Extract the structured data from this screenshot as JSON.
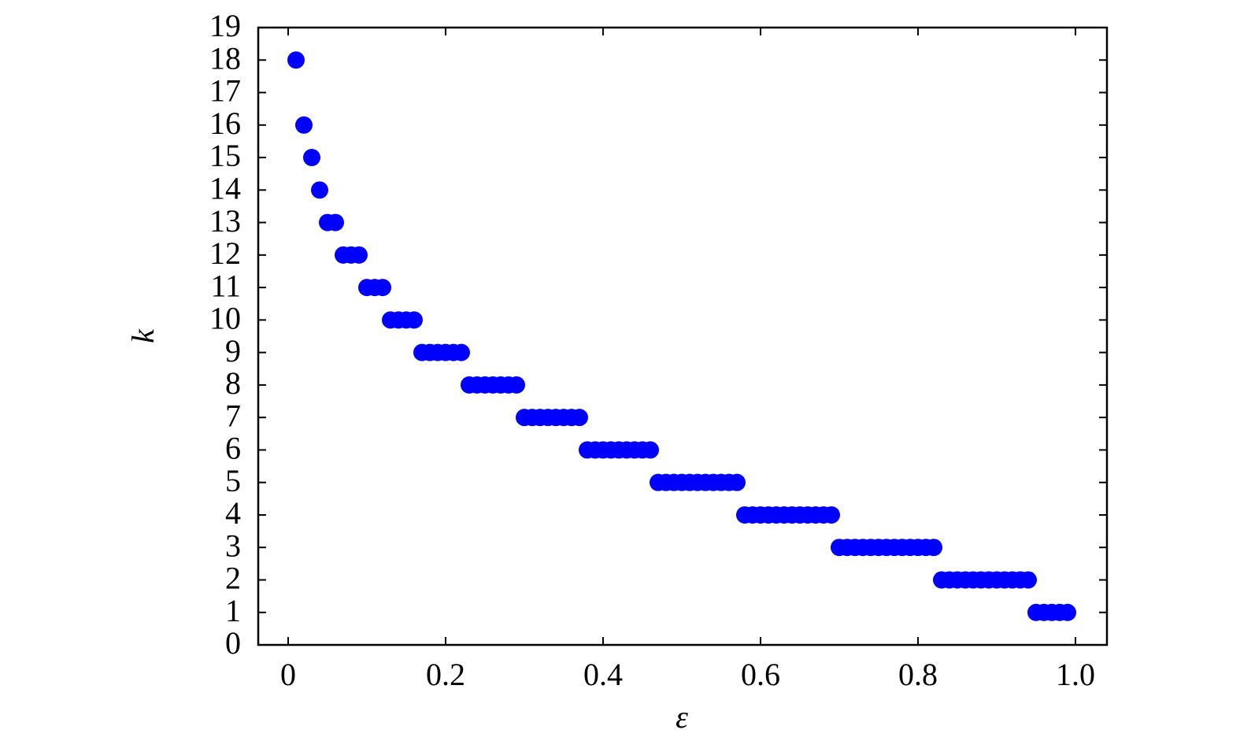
{
  "chart_data": {
    "type": "scatter",
    "x_label": "ε",
    "y_label": "k",
    "x": [
      0.01,
      0.02,
      0.03,
      0.04,
      0.05,
      0.06,
      0.07,
      0.08,
      0.09,
      0.1,
      0.11,
      0.12,
      0.13,
      0.14,
      0.15,
      0.16,
      0.17,
      0.18,
      0.19,
      0.2,
      0.21,
      0.22,
      0.23,
      0.24,
      0.25,
      0.26,
      0.27,
      0.28,
      0.29,
      0.3,
      0.31,
      0.32,
      0.33,
      0.34,
      0.35,
      0.36,
      0.37,
      0.38,
      0.39,
      0.4,
      0.41,
      0.42,
      0.43,
      0.44,
      0.45,
      0.46,
      0.47,
      0.48,
      0.49,
      0.5,
      0.51,
      0.52,
      0.53,
      0.54,
      0.55,
      0.56,
      0.57,
      0.58,
      0.59,
      0.6,
      0.61,
      0.62,
      0.63,
      0.64,
      0.65,
      0.66,
      0.67,
      0.68,
      0.69,
      0.7,
      0.71,
      0.72,
      0.73,
      0.74,
      0.75,
      0.76,
      0.77,
      0.78,
      0.79,
      0.8,
      0.81,
      0.82,
      0.83,
      0.84,
      0.85,
      0.86,
      0.87,
      0.88,
      0.89,
      0.9,
      0.91,
      0.92,
      0.93,
      0.94,
      0.95,
      0.96,
      0.97,
      0.98,
      0.99
    ],
    "values": [
      18,
      16,
      15,
      14,
      13,
      13,
      12,
      12,
      12,
      11,
      11,
      11,
      10,
      10,
      10,
      10,
      9,
      9,
      9,
      9,
      9,
      9,
      8,
      8,
      8,
      8,
      8,
      8,
      8,
      7,
      7,
      7,
      7,
      7,
      7,
      7,
      7,
      6,
      6,
      6,
      6,
      6,
      6,
      6,
      6,
      6,
      5,
      5,
      5,
      5,
      5,
      5,
      5,
      5,
      5,
      5,
      5,
      4,
      4,
      4,
      4,
      4,
      4,
      4,
      4,
      4,
      4,
      4,
      4,
      3,
      3,
      3,
      3,
      3,
      3,
      3,
      3,
      3,
      3,
      3,
      3,
      3,
      2,
      2,
      2,
      2,
      2,
      2,
      2,
      2,
      2,
      2,
      2,
      2,
      1,
      1,
      1,
      1,
      1
    ],
    "color": "#0000ff",
    "xlim": [
      -0.038,
      1.04
    ],
    "ylim": [
      0,
      19
    ],
    "xticks": [
      0,
      0.2,
      0.4,
      0.6,
      0.8,
      {
        "value": 1,
        "label": "1.0"
      }
    ],
    "yticks": [
      0,
      1,
      2,
      3,
      4,
      5,
      6,
      7,
      8,
      9,
      10,
      11,
      12,
      13,
      14,
      15,
      16,
      17,
      18,
      19
    ]
  }
}
